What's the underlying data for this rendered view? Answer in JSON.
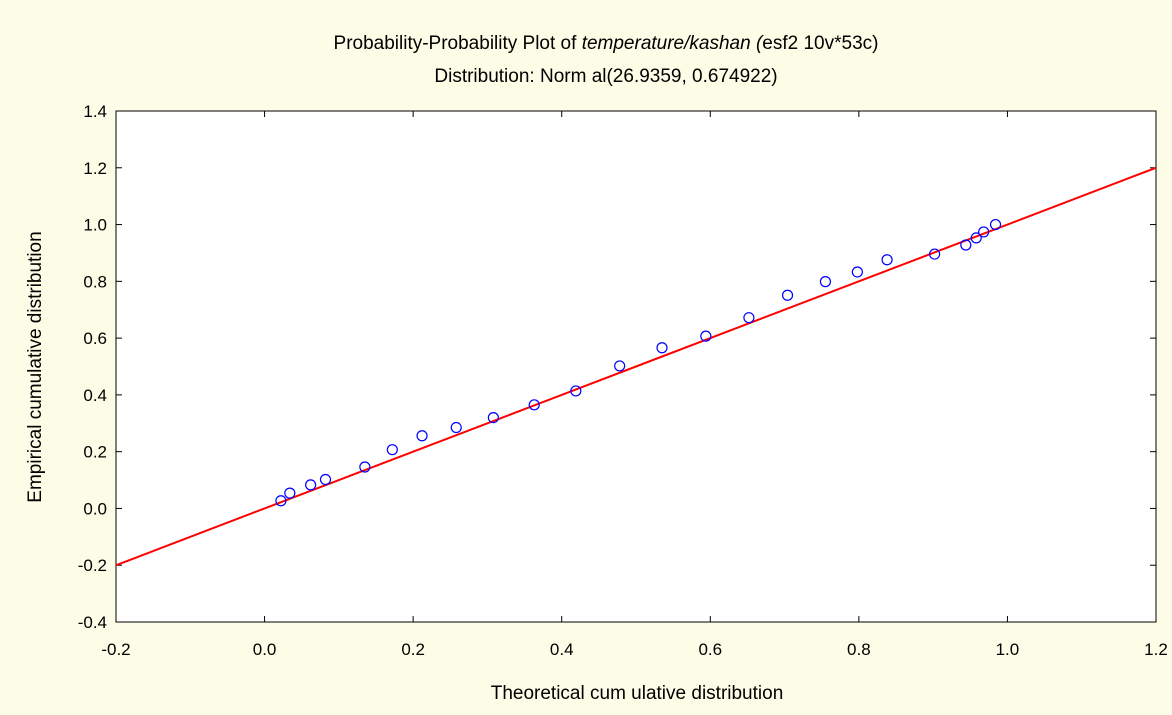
{
  "chart_data": {
    "type": "scatter",
    "title_prefix": "Probability-Probability Plot of ",
    "title_italic": "temperature/kashan (",
    "title_suffix": "esf2 10v*53c)",
    "subtitle": "Distribution: Norm al(26.9359, 0.674922)",
    "xlabel": "Theoretical cum ulative distribution",
    "ylabel": "Empirical cumulative distribution",
    "xlim": [
      -0.2,
      1.2
    ],
    "ylim": [
      -0.4,
      1.4
    ],
    "x_ticks": [
      -0.2,
      0.0,
      0.2,
      0.4,
      0.6,
      0.8,
      1.0,
      1.2
    ],
    "y_ticks": [
      -0.4,
      -0.2,
      0.0,
      0.2,
      0.4,
      0.6,
      0.8,
      1.0,
      1.2,
      1.4
    ],
    "x_tick_labels": [
      "-0.2",
      "0.0",
      "0.2",
      "0.4",
      "0.6",
      "0.8",
      "1.0",
      "1.2"
    ],
    "y_tick_labels": [
      "-0.4",
      "-0.2",
      "0.0",
      "0.2",
      "0.4",
      "0.6",
      "0.8",
      "1.0",
      "1.2",
      "1.4"
    ],
    "grid": false,
    "reference_line": {
      "x": [
        -0.2,
        1.2
      ],
      "y": [
        -0.2,
        1.2
      ],
      "color": "#ff0000"
    },
    "point_color": "#0000ff",
    "points": {
      "x": [
        0.022,
        0.034,
        0.062,
        0.082,
        0.135,
        0.172,
        0.212,
        0.258,
        0.308,
        0.363,
        0.419,
        0.478,
        0.535,
        0.594,
        0.652,
        0.704,
        0.755,
        0.798,
        0.838,
        0.902,
        0.944,
        0.958,
        0.968,
        0.984
      ],
      "y": [
        0.027,
        0.054,
        0.083,
        0.102,
        0.146,
        0.207,
        0.256,
        0.285,
        0.32,
        0.365,
        0.414,
        0.502,
        0.566,
        0.607,
        0.672,
        0.751,
        0.799,
        0.833,
        0.876,
        0.896,
        0.928,
        0.953,
        0.974,
        1.0
      ]
    }
  }
}
